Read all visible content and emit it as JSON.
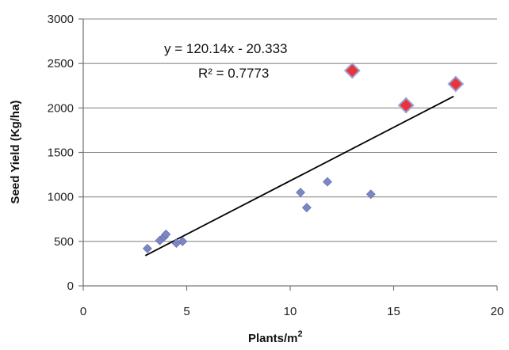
{
  "chart_data": {
    "type": "scatter",
    "xlabel": "Plants/m",
    "xlabel_sup": "2",
    "ylabel": "Seed Yield (Kg/ha)",
    "xlim": [
      0,
      20
    ],
    "ylim": [
      0,
      3000
    ],
    "xticks": [
      0,
      5,
      10,
      15,
      20
    ],
    "yticks": [
      0,
      500,
      1000,
      1500,
      2000,
      2500,
      3000
    ],
    "grid": "horizontal",
    "series": [
      {
        "color": "#7b86c4",
        "marker": "diamond-small",
        "points": [
          {
            "x": 3.1,
            "y": 420
          },
          {
            "x": 3.7,
            "y": 510
          },
          {
            "x": 3.9,
            "y": 550
          },
          {
            "x": 4.0,
            "y": 580
          },
          {
            "x": 4.5,
            "y": 480
          },
          {
            "x": 4.8,
            "y": 500
          },
          {
            "x": 10.5,
            "y": 1050
          },
          {
            "x": 10.8,
            "y": 880
          },
          {
            "x": 11.8,
            "y": 1170
          },
          {
            "x": 13.9,
            "y": 1030
          }
        ]
      },
      {
        "color": "#e8343a",
        "marker": "diamond-large",
        "points": [
          {
            "x": 13.0,
            "y": 2420
          },
          {
            "x": 15.6,
            "y": 2030
          },
          {
            "x": 18.0,
            "y": 2270
          }
        ]
      }
    ],
    "trendline": {
      "x1": 3.0,
      "y1": 340,
      "x2": 17.9,
      "y2": 2130,
      "color": "#000000"
    },
    "annotations": [
      {
        "text": "y = 120.14x - 20.333"
      },
      {
        "text": "R² = 0.7773"
      }
    ]
  }
}
